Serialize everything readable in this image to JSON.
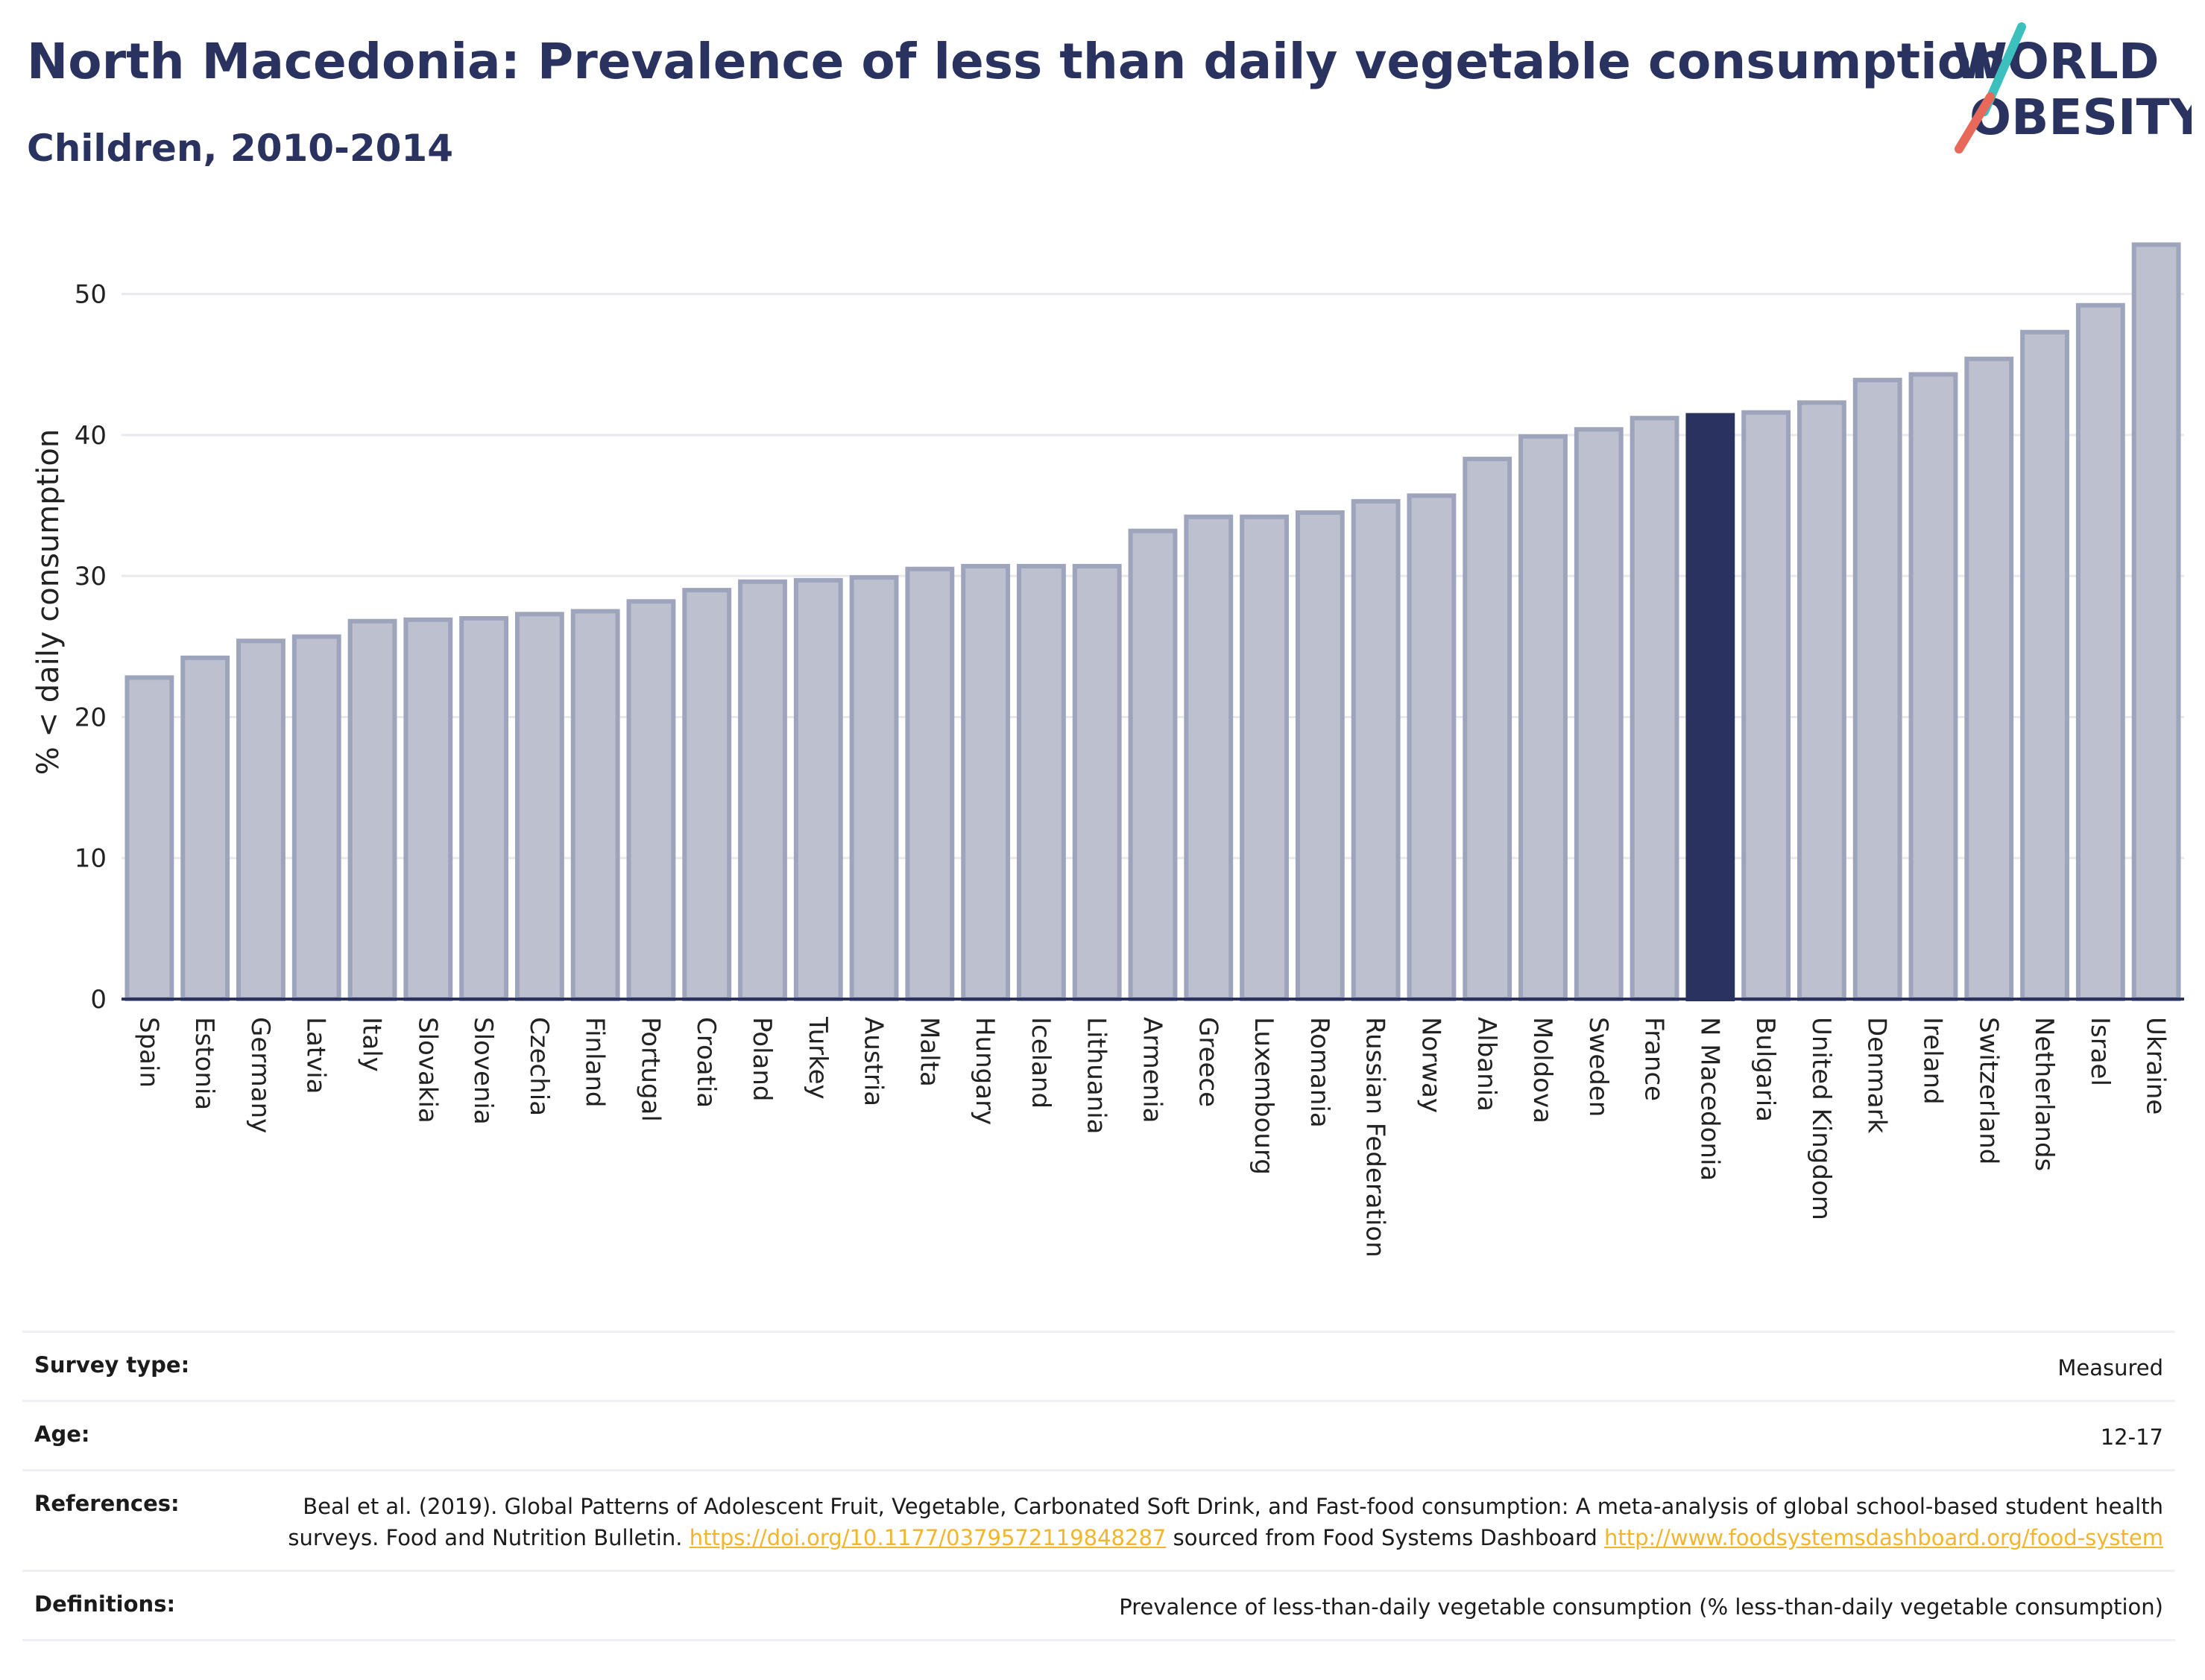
{
  "header": {
    "title": "North Macedonia: Prevalence of less than daily vegetable consumption",
    "subtitle": "Children, 2010-2014"
  },
  "logo": {
    "line1": "WORLD",
    "line2": "OBESITY",
    "accent_teal": "#3cc0bd",
    "accent_red": "#e8685a",
    "text_color": "#2a3360"
  },
  "chart_data": {
    "type": "bar",
    "ylabel": "% < daily consumption",
    "ylim": [
      0,
      55
    ],
    "yticks": [
      0,
      10,
      20,
      30,
      40,
      50
    ],
    "grid": true,
    "highlight": "N Macedonia",
    "colors": {
      "bar": "#bcc0cf",
      "bar_edge": "#9ea4bb",
      "highlight": "#2a3360",
      "grid": "#e8e9ee",
      "axis": "#2a3360"
    },
    "categories": [
      "Spain",
      "Estonia",
      "Germany",
      "Latvia",
      "Italy",
      "Slovakia",
      "Slovenia",
      "Czechia",
      "Finland",
      "Portugal",
      "Croatia",
      "Poland",
      "Turkey",
      "Austria",
      "Malta",
      "Hungary",
      "Iceland",
      "Lithuania",
      "Armenia",
      "Greece",
      "Luxembourg",
      "Romania",
      "Russian Federation",
      "Norway",
      "Albania",
      "Moldova",
      "Sweden",
      "France",
      "N Macedonia",
      "Bulgaria",
      "United Kingdom",
      "Denmark",
      "Ireland",
      "Switzerland",
      "Netherlands",
      "Israel",
      "Ukraine"
    ],
    "values": [
      22.8,
      24.2,
      25.4,
      25.7,
      26.8,
      26.9,
      27.0,
      27.3,
      27.5,
      28.2,
      29.0,
      29.6,
      29.7,
      29.9,
      30.5,
      30.7,
      30.7,
      30.7,
      33.2,
      34.2,
      34.2,
      34.5,
      35.3,
      35.7,
      38.3,
      39.9,
      40.4,
      41.2,
      41.4,
      41.6,
      42.3,
      43.9,
      44.3,
      45.4,
      47.3,
      49.2,
      53.5
    ]
  },
  "info": [
    {
      "key": "Survey type:",
      "value": "Measured"
    },
    {
      "key": "Age:",
      "value": "12-17"
    },
    {
      "key": "References:",
      "value_parts": [
        "Beal et al. (2019). Global Patterns of Adolescent Fruit, Vegetable, Carbonated Soft Drink, and Fast-food consumption: A meta-analysis of global school-based student health surveys. Food and Nutrition Bulletin. ",
        "https://doi.org/10.1177/0379572119848287",
        " sourced from Food Systems Dashboard ",
        "http://www.foodsystemsdashboard.org/food-system"
      ]
    },
    {
      "key": "Definitions:",
      "value": "Prevalence of less-than-daily vegetable consumption (% less-than-daily vegetable consumption)"
    }
  ]
}
